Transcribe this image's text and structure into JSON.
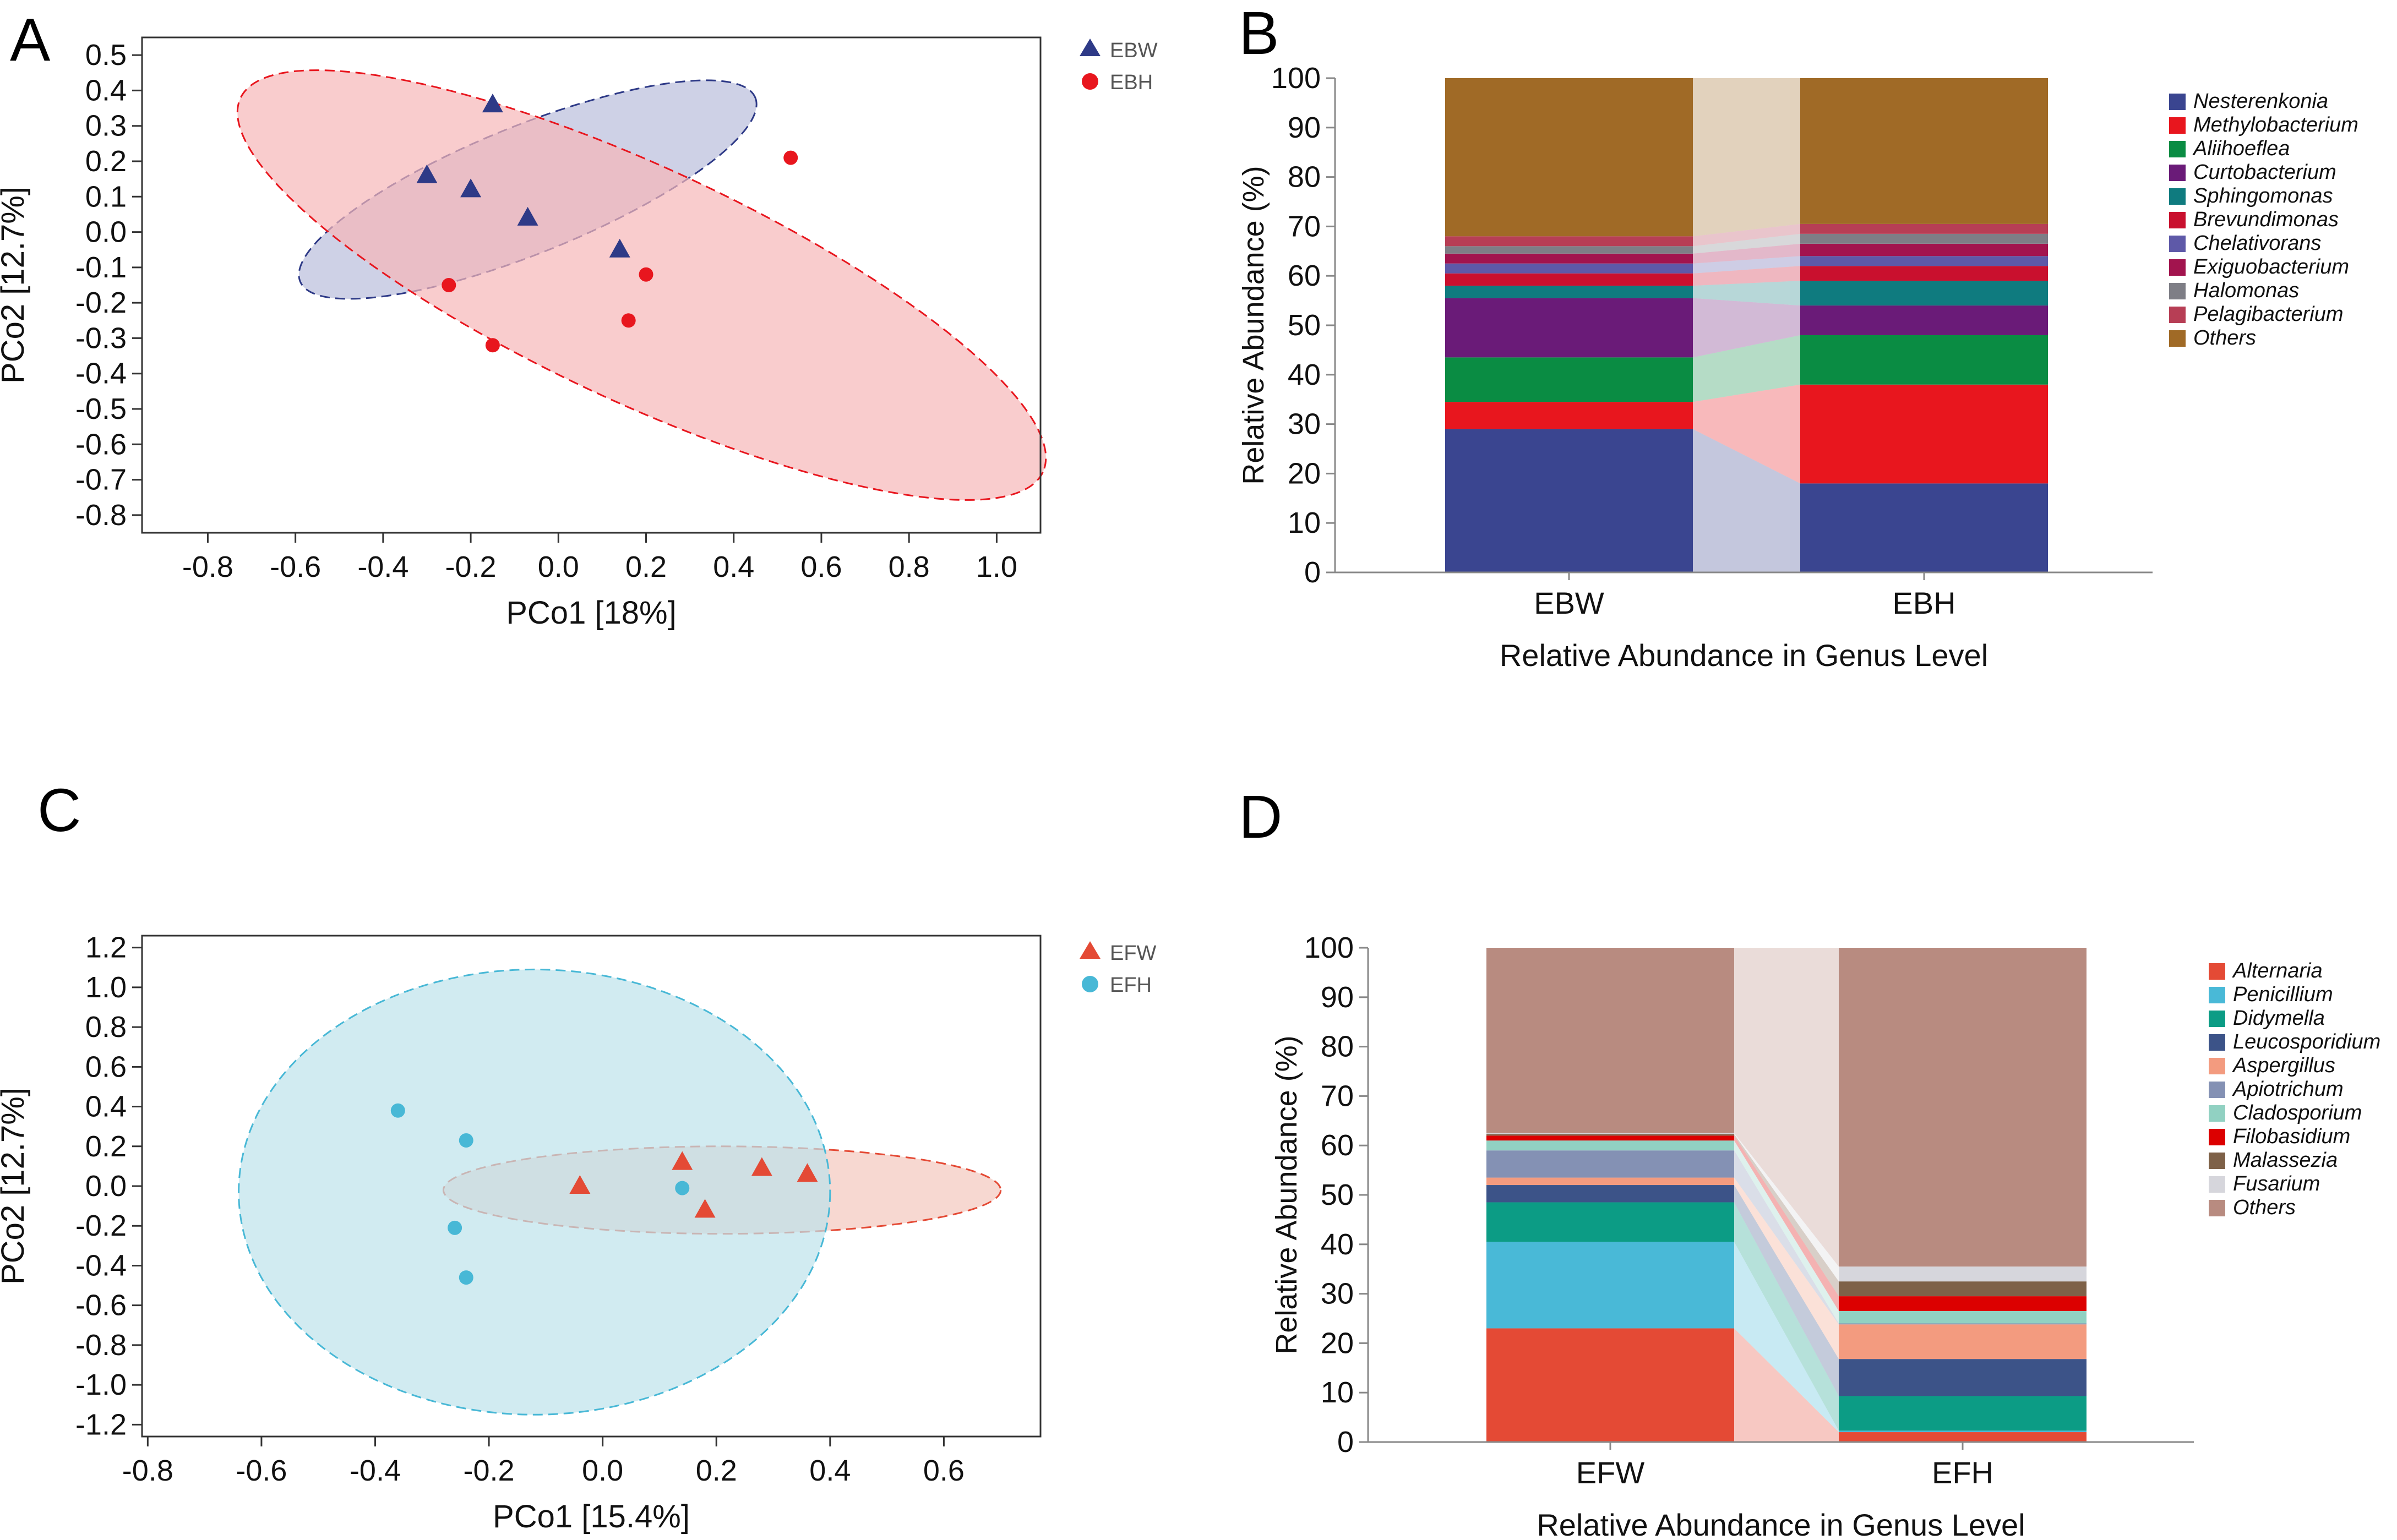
{
  "panels": [
    {
      "letter": "A"
    },
    {
      "letter": "B"
    },
    {
      "letter": "C"
    },
    {
      "letter": "D"
    }
  ],
  "chart_data": [
    {
      "id": "A",
      "type": "scatter",
      "xlabel": "PCo1 [18%]",
      "ylabel": "PCo2 [12.7%]",
      "xlim": [
        -0.95,
        1.1
      ],
      "ylim": [
        -0.85,
        0.55
      ],
      "xticks": [
        -0.8,
        -0.6,
        -0.4,
        -0.2,
        0.0,
        0.2,
        0.4,
        0.6,
        0.8,
        1.0
      ],
      "yticks": [
        0.5,
        0.4,
        0.3,
        0.2,
        0.1,
        0.0,
        -0.1,
        -0.2,
        -0.3,
        -0.4,
        -0.5,
        -0.6,
        -0.7,
        -0.8
      ],
      "series": [
        {
          "name": "EBW",
          "marker": "triangle",
          "color": "#2E3A87",
          "fill": "#B9BEDB",
          "x": [
            -0.15,
            -0.3,
            -0.2,
            -0.07,
            0.14
          ],
          "y": [
            0.36,
            0.16,
            0.12,
            0.04,
            -0.05
          ],
          "ellipse": {
            "cx": -0.07,
            "cy": 0.12,
            "rx": 0.56,
            "ry": 0.18,
            "angle": -22
          }
        },
        {
          "name": "EBH",
          "marker": "circle",
          "color": "#E8161E",
          "fill": "#F7B6B8",
          "x": [
            0.53,
            -0.25,
            0.2,
            0.16,
            -0.15
          ],
          "y": [
            0.21,
            -0.15,
            -0.12,
            -0.25,
            -0.32
          ],
          "ellipse": {
            "cx": 0.19,
            "cy": -0.15,
            "rx": 1.01,
            "ry": 0.33,
            "angle": 25
          }
        }
      ]
    },
    {
      "id": "B",
      "type": "bar",
      "stacked": true,
      "title": "",
      "xlabel": "Relative Abundance in Genus Level",
      "ylabel": "Relative Abundance (%)",
      "ylim": [
        0,
        100
      ],
      "yticks": [
        0,
        10,
        20,
        30,
        40,
        50,
        60,
        70,
        80,
        90,
        100
      ],
      "categories": [
        "EBW",
        "EBH"
      ],
      "series": [
        {
          "name": "Nesterenkonia",
          "color": "#3A4590",
          "values": [
            29,
            18
          ]
        },
        {
          "name": "Methylobacterium",
          "color": "#E8161E",
          "values": [
            5.5,
            20
          ]
        },
        {
          "name": "Aliihoeflea",
          "color": "#0A8C43",
          "values": [
            9,
            10
          ]
        },
        {
          "name": "Curtobacterium",
          "color": "#6A1B78",
          "values": [
            12,
            6
          ]
        },
        {
          "name": "Sphingomonas",
          "color": "#0F7B7F",
          "values": [
            2.5,
            5
          ]
        },
        {
          "name": "Brevundimonas",
          "color": "#C9102E",
          "values": [
            2.5,
            3
          ]
        },
        {
          "name": "Chelativorans",
          "color": "#5E59A8",
          "values": [
            2,
            2
          ]
        },
        {
          "name": "Exiguobacterium",
          "color": "#A2144E",
          "values": [
            2,
            2.5
          ]
        },
        {
          "name": "Halomonas",
          "color": "#7E7E86",
          "values": [
            1.5,
            2
          ]
        },
        {
          "name": "Pelagibacterium",
          "color": "#B73E55",
          "values": [
            2,
            2
          ]
        },
        {
          "name": "Others",
          "color": "#A06A26",
          "values": [
            32,
            29.5
          ]
        }
      ]
    },
    {
      "id": "C",
      "type": "scatter",
      "xlabel": "PCo1 [15.4%]",
      "ylabel": "PCo2 [12.7%]",
      "xlim": [
        -0.81,
        0.77
      ],
      "ylim": [
        -1.26,
        1.26
      ],
      "xticks": [
        -0.8,
        -0.6,
        -0.4,
        -0.2,
        0.0,
        0.2,
        0.4,
        0.6
      ],
      "yticks": [
        1.2,
        1.0,
        0.8,
        0.6,
        0.4,
        0.2,
        0.0,
        -0.2,
        -0.4,
        -0.6,
        -0.8,
        -1.0,
        -1.2
      ],
      "series": [
        {
          "name": "EFW",
          "marker": "triangle",
          "color": "#E44A35",
          "fill": "#F4C7BD",
          "x": [
            -0.04,
            0.14,
            0.18,
            0.28,
            0.36
          ],
          "y": [
            0.0,
            0.12,
            -0.12,
            0.09,
            0.06
          ],
          "ellipse": {
            "cx": 0.21,
            "cy": -0.02,
            "rx": 0.49,
            "ry": 0.22,
            "angle": 0
          }
        },
        {
          "name": "EFH",
          "marker": "circle",
          "color": "#48B8D6",
          "fill": "#BDE3EB",
          "x": [
            -0.36,
            -0.24,
            0.14,
            -0.26,
            -0.24
          ],
          "y": [
            0.38,
            0.23,
            -0.01,
            -0.21,
            -0.46
          ],
          "ellipse": {
            "cx": -0.12,
            "cy": -0.03,
            "rx": 0.52,
            "ry": 1.12,
            "angle": 0
          }
        }
      ]
    },
    {
      "id": "D",
      "type": "bar",
      "stacked": true,
      "title": "",
      "xlabel": "Relative Abundance in Genus Level",
      "ylabel": "Relative Abundance (%)",
      "ylim": [
        0,
        100
      ],
      "yticks": [
        0,
        10,
        20,
        30,
        40,
        50,
        60,
        70,
        80,
        90,
        100
      ],
      "categories": [
        "EFW",
        "EFH"
      ],
      "series": [
        {
          "name": "Alternaria",
          "color": "#E44A35",
          "values": [
            23,
            2
          ]
        },
        {
          "name": "Penicillium",
          "color": "#49B9D7",
          "values": [
            17.5,
            0.3
          ]
        },
        {
          "name": "Didymella",
          "color": "#0C9C85",
          "values": [
            8,
            7
          ]
        },
        {
          "name": "Leucosporidium",
          "color": "#3C5388",
          "values": [
            3.5,
            7.5
          ]
        },
        {
          "name": "Aspergillus",
          "color": "#F39B7F",
          "values": [
            1.5,
            7
          ]
        },
        {
          "name": "Apiotrichum",
          "color": "#8491B4",
          "values": [
            5.5,
            0.2
          ]
        },
        {
          "name": "Cladosporium",
          "color": "#91D1C2",
          "values": [
            2,
            2.5
          ]
        },
        {
          "name": "Filobasidium",
          "color": "#DC0000",
          "values": [
            1,
            3
          ]
        },
        {
          "name": "Malassezia",
          "color": "#7E6148",
          "values": [
            0.3,
            3
          ]
        },
        {
          "name": "Fusarium",
          "color": "#D6D6DC",
          "values": [
            0.2,
            3
          ]
        },
        {
          "name": "Others",
          "color": "#B88B80",
          "values": [
            37.5,
            64.5
          ]
        }
      ]
    }
  ]
}
